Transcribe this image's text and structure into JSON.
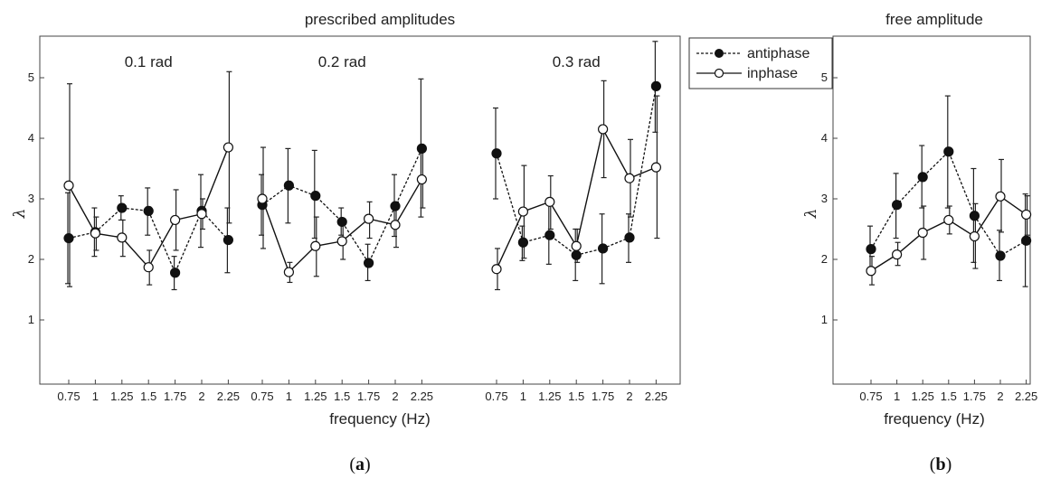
{
  "panels": [
    {
      "label_open": "(",
      "label_letter": "a",
      "label_close": ")",
      "title": "prescribed amplitudes",
      "xlabel": "frequency (Hz)",
      "ylabel": "λ"
    },
    {
      "label_open": "(",
      "label_letter": "b",
      "label_close": ")",
      "title": "free amplitude",
      "xlabel": "frequency (Hz)",
      "ylabel": "λ"
    }
  ],
  "legend": {
    "antiphase": "antiphase",
    "inphase": "inphase",
    "position": "top-right of panel a"
  },
  "chart_data": [
    {
      "type": "line",
      "title": "prescribed amplitudes",
      "xlabel": "frequency (Hz)",
      "ylabel": "λ",
      "ylim": [
        0,
        5.6
      ],
      "yticks": [
        "1",
        "2",
        "3",
        "4",
        "5"
      ],
      "grid": false,
      "groups": [
        {
          "label": "0.1 rad",
          "x_ticks": [
            "0.75",
            "1",
            "1.25",
            "1.5",
            "1.75",
            "2",
            "2.25"
          ],
          "x": [
            0.75,
            1,
            1.25,
            1.5,
            1.75,
            2,
            2.25
          ],
          "series": [
            {
              "name": "antiphase",
              "style": "dashed-filled",
              "values": [
                2.35,
                2.45,
                2.85,
                2.8,
                1.78,
                2.8,
                2.32
              ],
              "err_low": [
                1.6,
                2.05,
                2.65,
                2.4,
                1.5,
                2.2,
                1.78
              ],
              "err_high": [
                3.1,
                2.85,
                3.05,
                3.18,
                2.05,
                3.4,
                2.85
              ]
            },
            {
              "name": "inphase",
              "style": "solid-open",
              "values": [
                3.22,
                2.43,
                2.36,
                1.87,
                2.65,
                2.75,
                3.85
              ],
              "err_low": [
                1.55,
                2.15,
                2.05,
                1.58,
                2.15,
                2.5,
                2.6
              ],
              "err_high": [
                4.9,
                2.7,
                2.65,
                2.15,
                3.15,
                3.0,
                5.1
              ]
            }
          ]
        },
        {
          "label": "0.2 rad",
          "x_ticks": [
            "0.75",
            "1",
            "1.25",
            "1.5",
            "1.75",
            "2",
            "2.25"
          ],
          "x": [
            0.75,
            1,
            1.25,
            1.5,
            1.75,
            2,
            2.25
          ],
          "series": [
            {
              "name": "antiphase",
              "style": "dashed-filled",
              "values": [
                2.9,
                3.22,
                3.05,
                2.62,
                1.94,
                2.88,
                3.83
              ],
              "err_low": [
                2.4,
                2.6,
                2.35,
                2.4,
                1.65,
                2.38,
                2.7
              ],
              "err_high": [
                3.4,
                3.83,
                3.8,
                2.85,
                2.25,
                3.4,
                4.98
              ]
            },
            {
              "name": "inphase",
              "style": "solid-open",
              "values": [
                3.0,
                1.79,
                2.22,
                2.3,
                2.67,
                2.57,
                3.32
              ],
              "err_low": [
                2.18,
                1.62,
                1.72,
                2.0,
                2.35,
                2.2,
                2.85
              ],
              "err_high": [
                3.85,
                1.95,
                2.7,
                2.6,
                2.95,
                2.95,
                3.8
              ]
            }
          ]
        },
        {
          "label": "0.3 rad",
          "x_ticks": [
            "0.75",
            "1",
            "1.25",
            "1.5",
            "1.75",
            "2",
            "2.25"
          ],
          "x": [
            0.75,
            1,
            1.25,
            1.5,
            1.75,
            2,
            2.25
          ],
          "series": [
            {
              "name": "antiphase",
              "style": "dashed-filled",
              "values": [
                3.75,
                2.28,
                2.4,
                2.07,
                2.18,
                2.36,
                4.86
              ],
              "err_low": [
                3.0,
                1.98,
                1.92,
                1.65,
                1.6,
                1.95,
                4.1
              ],
              "err_high": [
                4.5,
                2.55,
                2.9,
                2.5,
                2.75,
                2.75,
                5.6
              ]
            },
            {
              "name": "inphase",
              "style": "solid-open",
              "values": [
                1.84,
                2.79,
                2.95,
                2.22,
                4.15,
                3.34,
                3.52
              ],
              "err_low": [
                1.5,
                2.02,
                2.5,
                1.95,
                3.35,
                2.7,
                2.35
              ],
              "err_high": [
                2.18,
                3.55,
                3.38,
                2.5,
                4.95,
                3.98,
                4.7
              ]
            }
          ]
        }
      ]
    },
    {
      "type": "line",
      "title": "free amplitude",
      "xlabel": "frequency (Hz)",
      "ylabel": "λ",
      "ylim": [
        0,
        5.6
      ],
      "yticks": [
        "1",
        "2",
        "3",
        "4",
        "5"
      ],
      "grid": false,
      "x_ticks": [
        "0.75",
        "1",
        "1.25",
        "1.5",
        "1.75",
        "2",
        "2.25"
      ],
      "x": [
        0.75,
        1,
        1.25,
        1.5,
        1.75,
        2,
        2.25
      ],
      "series": [
        {
          "name": "antiphase",
          "style": "dashed-filled",
          "values": [
            2.17,
            2.9,
            3.36,
            3.78,
            2.72,
            2.06,
            2.31
          ],
          "err_low": [
            1.8,
            2.35,
            2.85,
            2.85,
            1.95,
            1.65,
            1.55
          ],
          "err_high": [
            2.55,
            3.42,
            3.88,
            4.7,
            3.5,
            2.48,
            3.08
          ]
        },
        {
          "name": "inphase",
          "style": "solid-open",
          "values": [
            1.81,
            2.08,
            2.44,
            2.65,
            2.38,
            3.04,
            2.74
          ],
          "err_low": [
            1.58,
            1.9,
            2.0,
            2.42,
            1.85,
            2.45,
            2.4
          ],
          "err_high": [
            2.05,
            2.28,
            2.88,
            2.88,
            2.92,
            3.65,
            3.05
          ]
        }
      ]
    }
  ]
}
